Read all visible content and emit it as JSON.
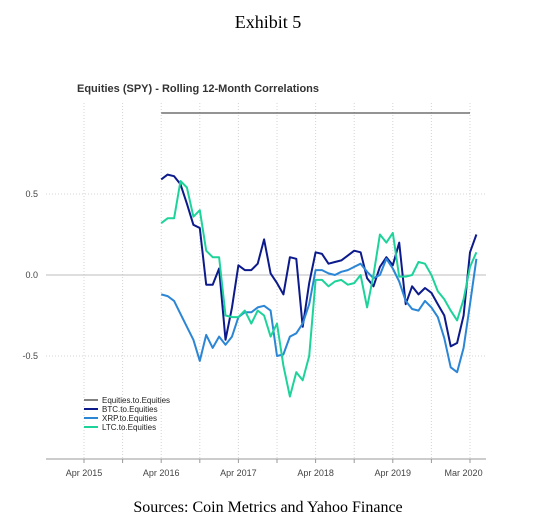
{
  "exhibit_title": "Exhibit 5",
  "source_note": "Sources: Coin Metrics and Yahoo Finance",
  "colors": {
    "equities": "#555555",
    "btc": "#0c1a8c",
    "xrp": "#2b86d6",
    "ltc": "#1ed39a",
    "grid": "#d4d4d4",
    "zero_line": "#bdbdbd"
  },
  "chart_data": {
    "type": "line",
    "title": "Equities (SPY) - Rolling 12-Month Correlations",
    "xlabel": "",
    "ylabel": "",
    "grid": true,
    "legend_position": "bottom-left",
    "x_range": [
      "2015-04",
      "2020-04"
    ],
    "ylim": [
      -1.08,
      1.08
    ],
    "x_ticks": [
      {
        "date": "2015-04",
        "label": "Apr 2015"
      },
      {
        "date": "2016-04",
        "label": "Apr 2016"
      },
      {
        "date": "2017-04",
        "label": "Apr 2017"
      },
      {
        "date": "2018-04",
        "label": "Apr 2018"
      },
      {
        "date": "2019-04",
        "label": "Apr 2019"
      },
      {
        "date": "2020-03",
        "label": "Mar 2020"
      }
    ],
    "y_ticks": [
      {
        "value": 0.5,
        "label": "0.5"
      },
      {
        "value": 0.0,
        "label": "0.0"
      },
      {
        "value": -0.5,
        "label": "-0.5"
      }
    ],
    "series": [
      {
        "name": "Equities.to.Equities",
        "color_key": "equities",
        "points": [
          [
            "2016-04",
            1.0
          ],
          [
            "2020-04",
            1.0
          ]
        ]
      },
      {
        "name": "BTC.to.Equities",
        "color_key": "btc",
        "points": [
          [
            "2016-04",
            0.59
          ],
          [
            "2016-05",
            0.62
          ],
          [
            "2016-06",
            0.61
          ],
          [
            "2016-07",
            0.56
          ],
          [
            "2016-08",
            0.44
          ],
          [
            "2016-09",
            0.31
          ],
          [
            "2016-10",
            0.29
          ],
          [
            "2016-11",
            -0.06
          ],
          [
            "2016-12",
            -0.06
          ],
          [
            "2017-01",
            0.04
          ],
          [
            "2017-02",
            -0.4
          ],
          [
            "2017-03",
            -0.2
          ],
          [
            "2017-04",
            0.06
          ],
          [
            "2017-05",
            0.03
          ],
          [
            "2017-06",
            0.03
          ],
          [
            "2017-07",
            0.07
          ],
          [
            "2017-08",
            0.22
          ],
          [
            "2017-09",
            0.01
          ],
          [
            "2017-10",
            -0.05
          ],
          [
            "2017-11",
            -0.12
          ],
          [
            "2017-12",
            0.11
          ],
          [
            "2018-01",
            0.1
          ],
          [
            "2018-02",
            -0.32
          ],
          [
            "2018-03",
            -0.05
          ],
          [
            "2018-04",
            0.14
          ],
          [
            "2018-05",
            0.13
          ],
          [
            "2018-06",
            0.07
          ],
          [
            "2018-07",
            0.08
          ],
          [
            "2018-08",
            0.09
          ],
          [
            "2018-09",
            0.12
          ],
          [
            "2018-10",
            0.15
          ],
          [
            "2018-11",
            0.14
          ],
          [
            "2018-12",
            -0.02
          ],
          [
            "2019-01",
            -0.07
          ],
          [
            "2019-02",
            0.05
          ],
          [
            "2019-03",
            0.11
          ],
          [
            "2019-04",
            0.06
          ],
          [
            "2019-05",
            0.2
          ],
          [
            "2019-06",
            -0.18
          ],
          [
            "2019-07",
            -0.07
          ],
          [
            "2019-08",
            -0.12
          ],
          [
            "2019-09",
            -0.08
          ],
          [
            "2019-10",
            -0.11
          ],
          [
            "2019-11",
            -0.18
          ],
          [
            "2019-12",
            -0.25
          ],
          [
            "2020-01",
            -0.44
          ],
          [
            "2020-02",
            -0.42
          ],
          [
            "2020-03",
            -0.25
          ],
          [
            "2020-04",
            0.14
          ],
          [
            "2020-05",
            0.25
          ]
        ]
      },
      {
        "name": "XRP.to.Equities",
        "color_key": "xrp",
        "points": [
          [
            "2016-04",
            -0.12
          ],
          [
            "2016-05",
            -0.13
          ],
          [
            "2016-06",
            -0.16
          ],
          [
            "2016-07",
            -0.24
          ],
          [
            "2016-08",
            -0.32
          ],
          [
            "2016-09",
            -0.4
          ],
          [
            "2016-10",
            -0.53
          ],
          [
            "2016-11",
            -0.37
          ],
          [
            "2016-12",
            -0.45
          ],
          [
            "2017-01",
            -0.38
          ],
          [
            "2017-02",
            -0.43
          ],
          [
            "2017-03",
            -0.38
          ],
          [
            "2017-04",
            -0.26
          ],
          [
            "2017-05",
            -0.23
          ],
          [
            "2017-06",
            -0.23
          ],
          [
            "2017-07",
            -0.2
          ],
          [
            "2017-08",
            -0.19
          ],
          [
            "2017-09",
            -0.22
          ],
          [
            "2017-10",
            -0.5
          ],
          [
            "2017-11",
            -0.49
          ],
          [
            "2017-12",
            -0.38
          ],
          [
            "2018-01",
            -0.36
          ],
          [
            "2018-02",
            -0.3
          ],
          [
            "2018-03",
            -0.18
          ],
          [
            "2018-04",
            0.03
          ],
          [
            "2018-05",
            0.03
          ],
          [
            "2018-06",
            0.01
          ],
          [
            "2018-07",
            0.0
          ],
          [
            "2018-08",
            0.02
          ],
          [
            "2018-09",
            0.03
          ],
          [
            "2018-10",
            0.05
          ],
          [
            "2018-11",
            0.07
          ],
          [
            "2018-12",
            0.02
          ],
          [
            "2019-01",
            -0.02
          ],
          [
            "2019-02",
            0.0
          ],
          [
            "2019-03",
            0.1
          ],
          [
            "2019-04",
            0.04
          ],
          [
            "2019-05",
            -0.04
          ],
          [
            "2019-06",
            -0.16
          ],
          [
            "2019-07",
            -0.21
          ],
          [
            "2019-08",
            -0.22
          ],
          [
            "2019-09",
            -0.16
          ],
          [
            "2019-10",
            -0.2
          ],
          [
            "2019-11",
            -0.26
          ],
          [
            "2019-12",
            -0.39
          ],
          [
            "2020-01",
            -0.57
          ],
          [
            "2020-02",
            -0.6
          ],
          [
            "2020-03",
            -0.45
          ],
          [
            "2020-04",
            -0.18
          ],
          [
            "2020-05",
            0.1
          ]
        ]
      },
      {
        "name": "LTC.to.Equities",
        "color_key": "ltc",
        "points": [
          [
            "2016-04",
            0.32
          ],
          [
            "2016-05",
            0.35
          ],
          [
            "2016-06",
            0.35
          ],
          [
            "2016-07",
            0.58
          ],
          [
            "2016-08",
            0.54
          ],
          [
            "2016-09",
            0.36
          ],
          [
            "2016-10",
            0.4
          ],
          [
            "2016-11",
            0.15
          ],
          [
            "2016-12",
            0.11
          ],
          [
            "2017-01",
            0.11
          ],
          [
            "2017-02",
            -0.25
          ],
          [
            "2017-03",
            -0.26
          ],
          [
            "2017-04",
            -0.26
          ],
          [
            "2017-05",
            -0.22
          ],
          [
            "2017-06",
            -0.3
          ],
          [
            "2017-07",
            -0.22
          ],
          [
            "2017-08",
            -0.25
          ],
          [
            "2017-09",
            -0.38
          ],
          [
            "2017-10",
            -0.3
          ],
          [
            "2017-11",
            -0.56
          ],
          [
            "2017-12",
            -0.75
          ],
          [
            "2018-01",
            -0.6
          ],
          [
            "2018-02",
            -0.65
          ],
          [
            "2018-03",
            -0.5
          ],
          [
            "2018-04",
            -0.03
          ],
          [
            "2018-05",
            -0.03
          ],
          [
            "2018-06",
            -0.07
          ],
          [
            "2018-07",
            -0.04
          ],
          [
            "2018-08",
            -0.03
          ],
          [
            "2018-09",
            -0.06
          ],
          [
            "2018-10",
            -0.05
          ],
          [
            "2018-11",
            0.0
          ],
          [
            "2018-12",
            -0.2
          ],
          [
            "2019-01",
            0.0
          ],
          [
            "2019-02",
            0.25
          ],
          [
            "2019-03",
            0.2
          ],
          [
            "2019-04",
            0.26
          ],
          [
            "2019-05",
            -0.01
          ],
          [
            "2019-06",
            -0.01
          ],
          [
            "2019-07",
            0.0
          ],
          [
            "2019-08",
            0.08
          ],
          [
            "2019-09",
            0.07
          ],
          [
            "2019-10",
            0.0
          ],
          [
            "2019-11",
            -0.1
          ],
          [
            "2019-12",
            -0.15
          ],
          [
            "2020-01",
            -0.22
          ],
          [
            "2020-02",
            -0.28
          ],
          [
            "2020-03",
            -0.15
          ],
          [
            "2020-04",
            0.05
          ],
          [
            "2020-05",
            0.14
          ]
        ]
      }
    ]
  }
}
